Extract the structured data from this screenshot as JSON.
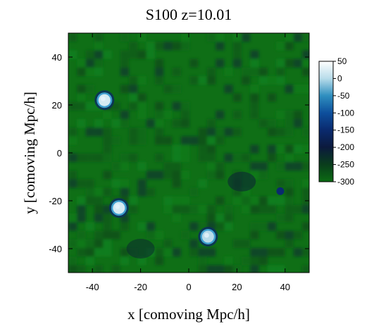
{
  "chart_data": {
    "type": "heatmap",
    "title": "S100 z=10.01",
    "xlabel": "x [comoving Mpc/h]",
    "ylabel": "y [comoving Mpc/h]",
    "xlim": [
      -50,
      50
    ],
    "ylim": [
      -50,
      50
    ],
    "xticks": [
      -40,
      -20,
      0,
      20,
      40
    ],
    "xtick_labels": [
      "-40",
      "-20",
      "0",
      "20",
      "40"
    ],
    "yticks": [
      40,
      20,
      0,
      -20,
      -40
    ],
    "ytick_labels": [
      "40",
      "20",
      "0",
      "-20",
      "-40"
    ],
    "colorbar": {
      "range": [
        -300,
        50
      ],
      "ticks": [
        50,
        0,
        -50,
        -100,
        -150,
        -200,
        -250,
        -300
      ],
      "tick_labels": [
        "50",
        "0",
        "-50",
        "-100",
        "-150",
        "-200",
        "-250",
        "-300"
      ],
      "colors": [
        "#ffffff",
        "#b8dcea",
        "#2f8fbf",
        "#0d4f9c",
        "#0a2a6e",
        "#0b1a3d",
        "#0a3d1c",
        "#0b6b13"
      ]
    },
    "background_color": "#0f6f16",
    "features": [
      {
        "label": "bright region",
        "x": -35,
        "y": 22,
        "value": 20
      },
      {
        "label": "bright region",
        "x": -29,
        "y": -23,
        "value": 20
      },
      {
        "label": "bright region",
        "x": 8,
        "y": -35,
        "value": 0
      },
      {
        "label": "dark region",
        "x": 38,
        "y": -16,
        "value": -150
      },
      {
        "label": "dark region",
        "x": 22,
        "y": -12,
        "value": -210
      },
      {
        "label": "dark region",
        "x": -20,
        "y": -40,
        "value": -220
      }
    ]
  }
}
